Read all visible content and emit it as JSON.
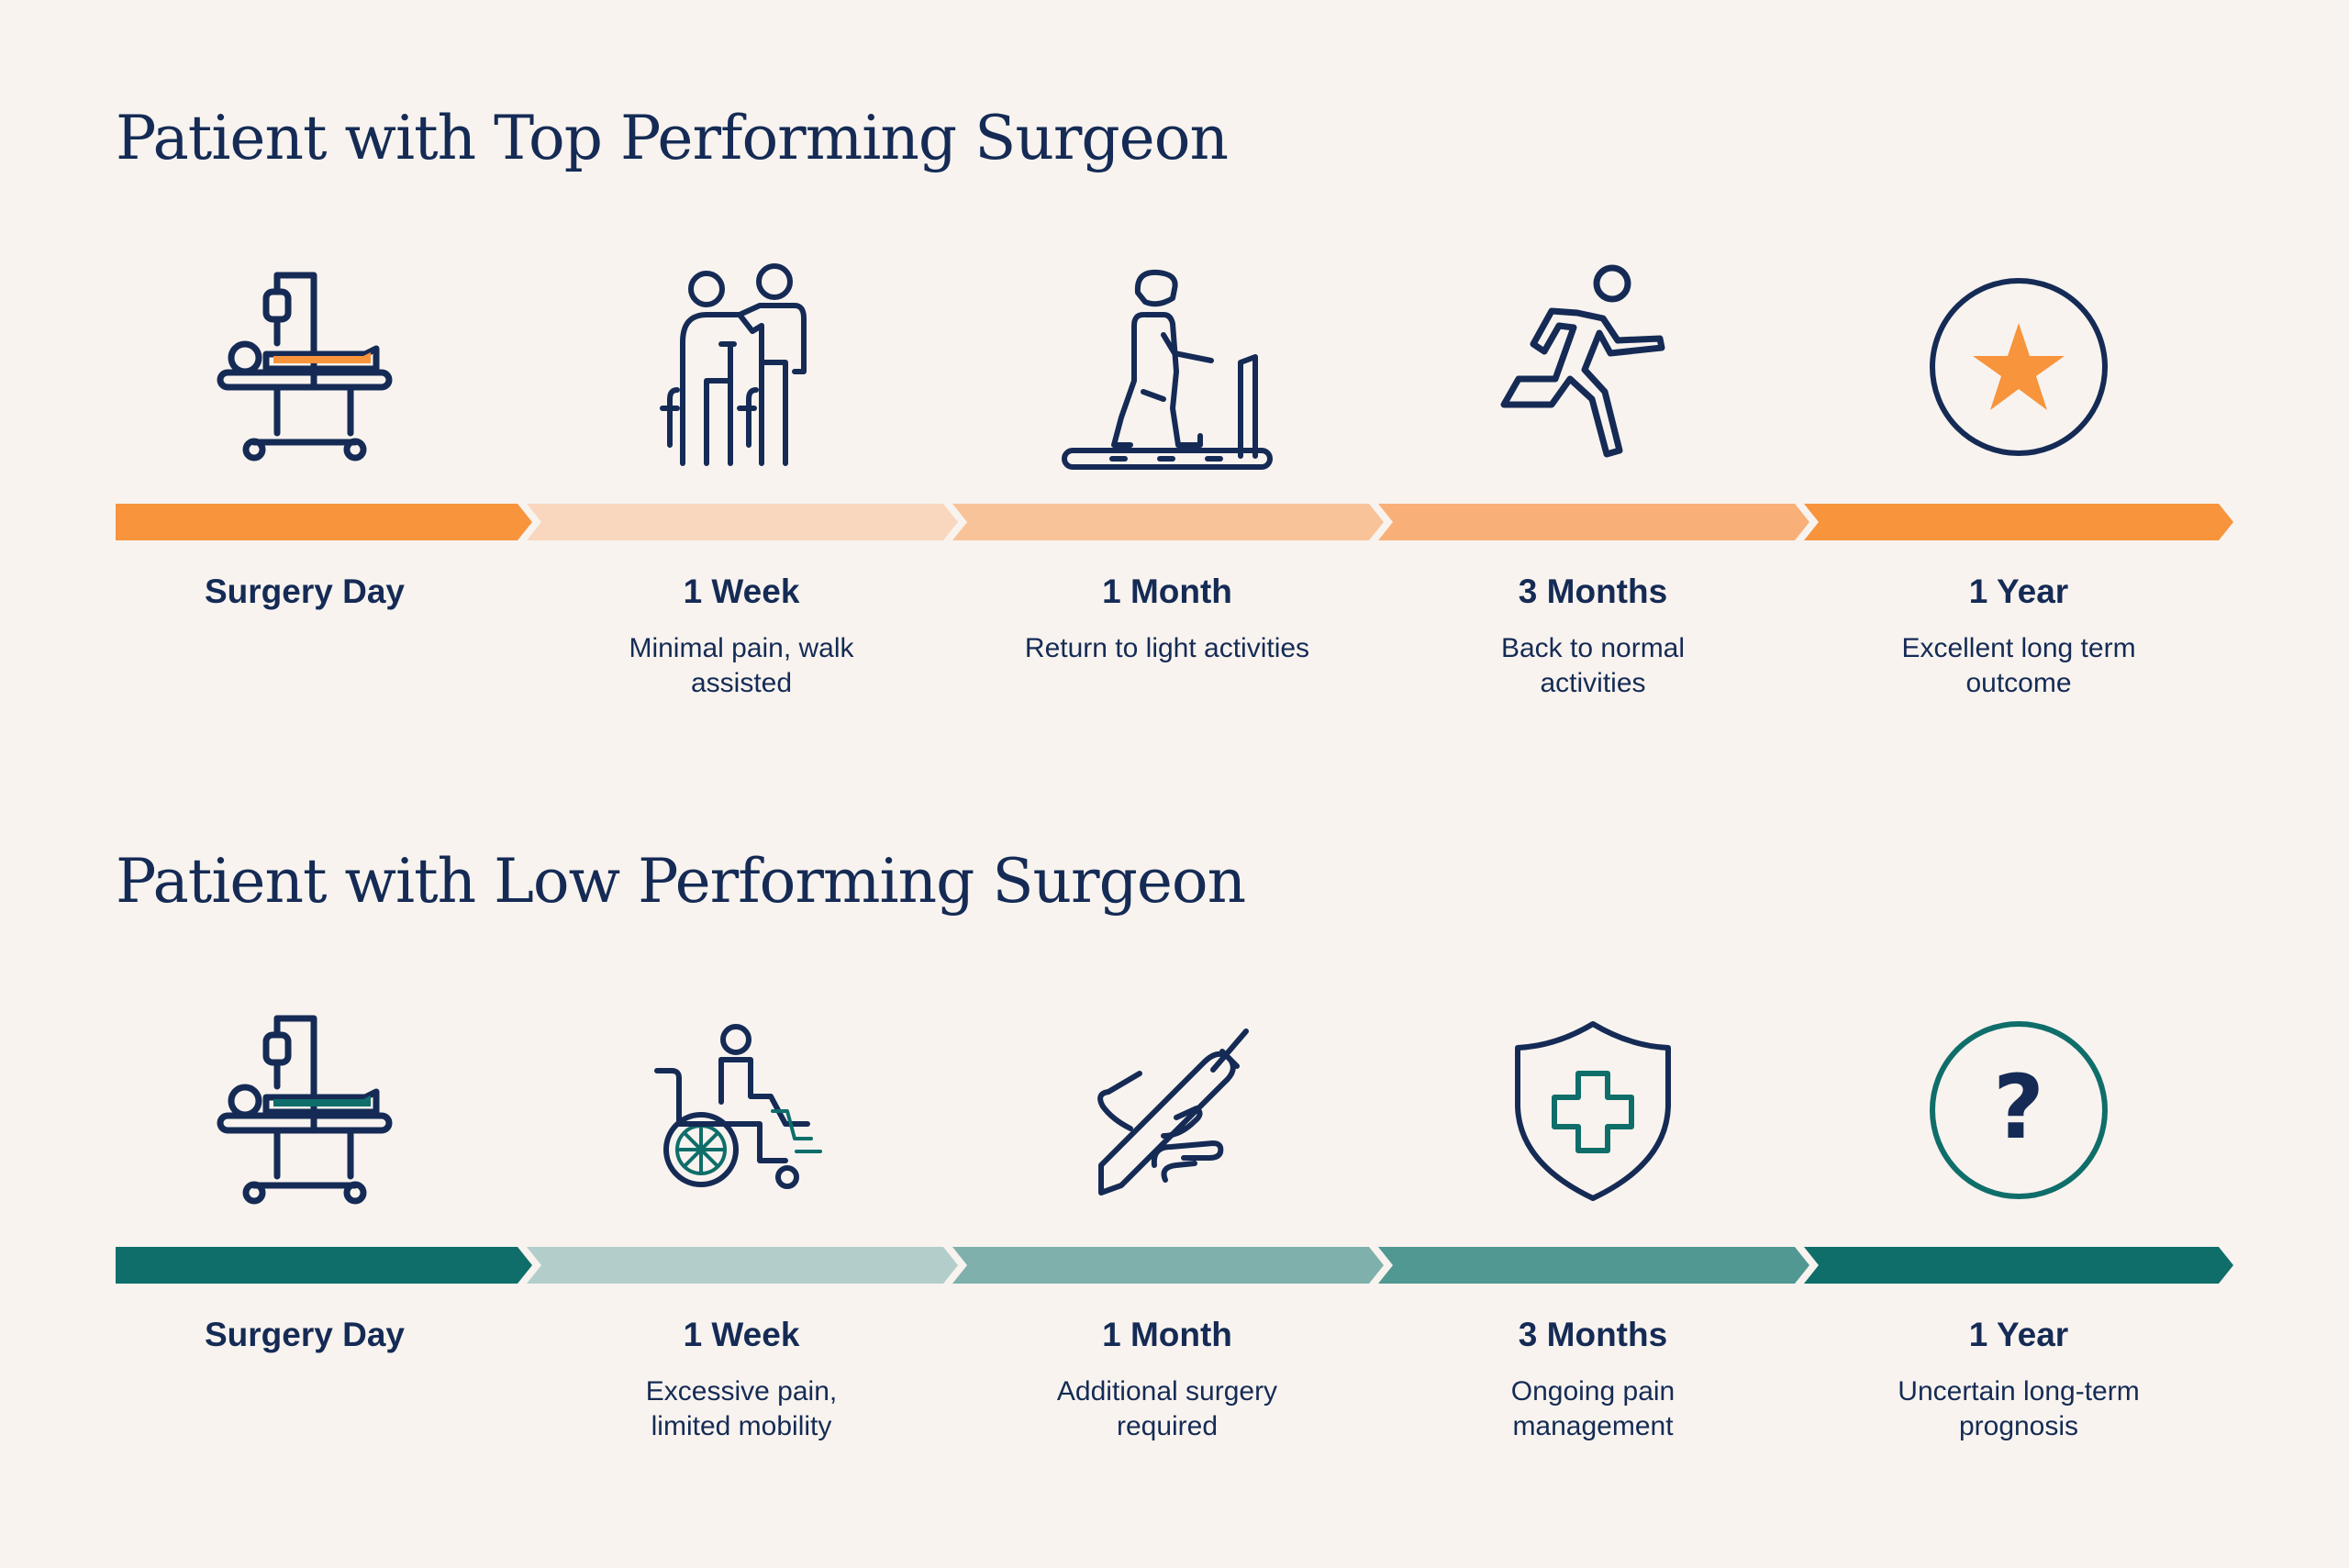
{
  "colors": {
    "navy": "#152b55",
    "orange": "#f7943c",
    "teal": "#0f6e6a",
    "background": "#f8f3ef"
  },
  "top": {
    "title": "Patient with Top Performing Surgeon",
    "accent": "#f7943c",
    "stages": [
      {
        "label": "Surgery Day",
        "desc": "",
        "icon": "hospital-bed-icon",
        "arrow_color": "#f7943c"
      },
      {
        "label": "1 Week",
        "desc": "Minimal pain, walk assisted",
        "icon": "assisted-walking-icon",
        "arrow_color": "#f9d7be"
      },
      {
        "label": "1 Month",
        "desc": "Return to light activities",
        "icon": "treadmill-icon",
        "arrow_color": "#f9c39a"
      },
      {
        "label": "3 Months",
        "desc": "Back to normal activities",
        "icon": "running-person-icon",
        "arrow_color": "#f8b078"
      },
      {
        "label": "1 Year",
        "desc": "Excellent long term outcome",
        "icon": "star-circle-icon",
        "arrow_color": "#f7943c"
      }
    ]
  },
  "low": {
    "title": "Patient with Low Performing Surgeon",
    "accent": "#0f6e6a",
    "stages": [
      {
        "label": "Surgery Day",
        "desc": "",
        "icon": "hospital-bed-icon",
        "arrow_color": "#0f6e6a"
      },
      {
        "label": "1 Week",
        "desc": "Excessive pain, limited mobility",
        "icon": "wheelchair-icon",
        "arrow_color": "#b3ceca"
      },
      {
        "label": "1 Month",
        "desc": "Additional surgery required",
        "icon": "scalpel-hand-icon",
        "arrow_color": "#7fb0ab"
      },
      {
        "label": "3 Months",
        "desc": "Ongoing pain management",
        "icon": "medical-shield-icon",
        "arrow_color": "#519792"
      },
      {
        "label": "1 Year",
        "desc": "Uncertain long-term prognosis",
        "icon": "question-circle-icon",
        "arrow_color": "#0f6e6a"
      }
    ]
  }
}
